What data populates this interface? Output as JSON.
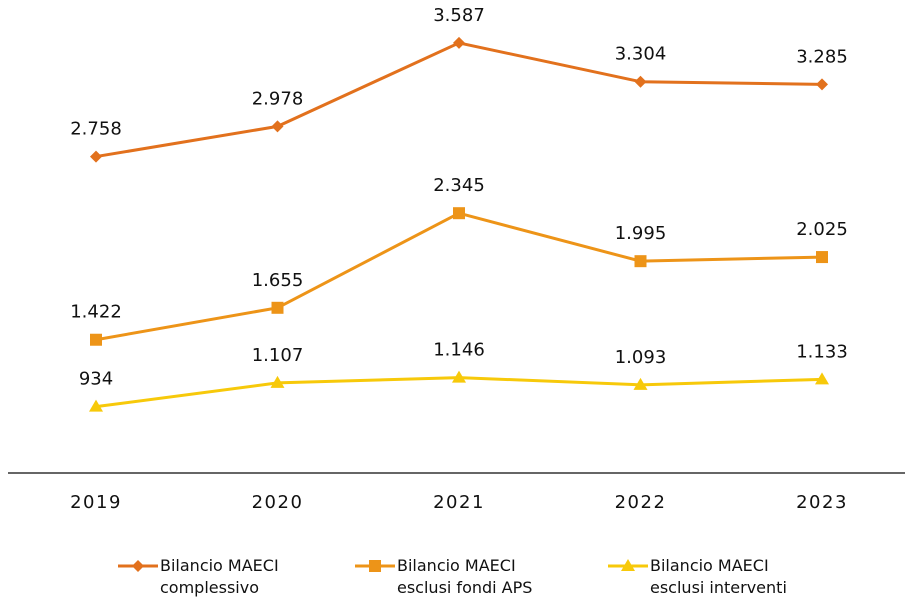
{
  "chart_data": {
    "type": "line",
    "categories": [
      "2019",
      "2020",
      "2021",
      "2022",
      "2023"
    ],
    "series": [
      {
        "name": "Bilancio MAECI complessivo",
        "color": "#e2711d",
        "marker": "diamond",
        "values": [
          2758,
          2978,
          3587,
          3304,
          3285
        ],
        "value_labels": [
          "2.758",
          "2.978",
          "3.587",
          "3.304",
          "3.285"
        ]
      },
      {
        "name": "Bilancio MAECI esclusi fondi APS",
        "color": "#ed9418",
        "marker": "square",
        "values": [
          1422,
          1655,
          2345,
          1995,
          2025
        ],
        "value_labels": [
          "1.422",
          "1.655",
          "2.345",
          "1.995",
          "2.025"
        ]
      },
      {
        "name": "Bilancio MAECI esclusi interventi",
        "color": "#f7c90a",
        "marker": "triangle",
        "values": [
          934,
          1107,
          1146,
          1093,
          1133
        ],
        "value_labels": [
          "934",
          "1.107",
          "1.146",
          "1.093",
          "1.133"
        ]
      }
    ],
    "ylim": [
      450,
      3900
    ]
  }
}
